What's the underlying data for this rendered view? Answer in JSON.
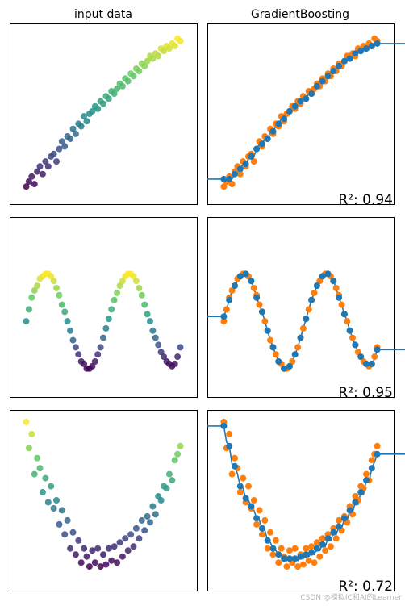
{
  "figure": {
    "col_titles": [
      "input data",
      "GradientBoosting"
    ],
    "watermark": "CSDN @模拟IC和AI的Learner"
  },
  "colors": {
    "data_points": "#1f77b4",
    "prediction": "#ff7f0e",
    "line": "#1f77b4",
    "frame": "#000000",
    "viridis": [
      "#440154",
      "#3b528b",
      "#21918c",
      "#5ec962",
      "#fde725"
    ]
  },
  "chart_data": [
    {
      "type": "scatter",
      "title": "",
      "xlabel": "",
      "ylabel": "",
      "xlim": [
        -3.4,
        3.4
      ],
      "ylim": [
        -3.6,
        3.6
      ],
      "grid": false,
      "shape": "linear",
      "score_label": "R²: 0.94",
      "x": [
        -2.8,
        -2.7,
        -2.6,
        -2.5,
        -2.4,
        -2.3,
        -2.2,
        -2.1,
        -2.0,
        -1.9,
        -1.8,
        -1.7,
        -1.6,
        -1.5,
        -1.4,
        -1.3,
        -1.2,
        -1.1,
        -1.0,
        -0.9,
        -0.8,
        -0.7,
        -0.6,
        -0.5,
        -0.4,
        -0.3,
        -0.2,
        -0.1,
        0.0,
        0.1,
        0.2,
        0.3,
        0.4,
        0.5,
        0.6,
        0.7,
        0.8,
        0.9,
        1.0,
        1.1,
        1.2,
        1.3,
        1.4,
        1.5,
        1.6,
        1.7,
        1.8,
        1.9,
        2.0,
        2.1,
        2.2,
        2.3,
        2.4,
        2.5,
        2.6,
        2.7,
        2.8
      ],
      "y": [
        -2.9,
        -2.7,
        -2.5,
        -2.8,
        -2.3,
        -2.1,
        -2.4,
        -1.9,
        -2.1,
        -1.7,
        -1.6,
        -1.9,
        -1.4,
        -1.1,
        -1.3,
        -0.9,
        -1.0,
        -0.6,
        -0.8,
        -0.4,
        -0.5,
        -0.1,
        -0.3,
        0.0,
        0.1,
        0.3,
        0.2,
        0.5,
        0.4,
        0.7,
        0.6,
        0.9,
        0.8,
        1.0,
        1.2,
        1.1,
        1.4,
        1.3,
        1.6,
        1.5,
        1.8,
        1.7,
        2.0,
        1.9,
        2.1,
        2.3,
        2.2,
        2.4,
        2.3,
        2.6,
        2.5,
        2.7,
        2.6,
        2.8,
        2.7,
        3.0,
        2.9
      ],
      "pred": [
        -2.6,
        -2.6,
        -2.6,
        -2.6,
        -2.4,
        -2.2,
        -2.2,
        -2.0,
        -2.0,
        -1.8,
        -1.7,
        -1.7,
        -1.4,
        -1.2,
        -1.2,
        -1.0,
        -1.0,
        -0.7,
        -0.7,
        -0.5,
        -0.4,
        -0.2,
        -0.2,
        0.0,
        0.1,
        0.3,
        0.3,
        0.4,
        0.5,
        0.6,
        0.6,
        0.8,
        0.8,
        1.0,
        1.1,
        1.2,
        1.3,
        1.3,
        1.5,
        1.5,
        1.7,
        1.7,
        1.9,
        1.9,
        2.1,
        2.2,
        2.2,
        2.3,
        2.4,
        2.5,
        2.5,
        2.6,
        2.6,
        2.7,
        2.7,
        2.8,
        2.8
      ]
    },
    {
      "type": "scatter",
      "title": "",
      "xlabel": "",
      "ylabel": "",
      "xlim": [
        -3.4,
        3.4
      ],
      "ylim": [
        -1.6,
        2.2
      ],
      "grid": false,
      "shape": "sine",
      "score_label": "R²: 0.95",
      "x": [
        -2.8,
        -2.7,
        -2.6,
        -2.5,
        -2.4,
        -2.3,
        -2.2,
        -2.1,
        -2.0,
        -1.9,
        -1.8,
        -1.7,
        -1.6,
        -1.5,
        -1.4,
        -1.3,
        -1.2,
        -1.1,
        -1.0,
        -0.9,
        -0.8,
        -0.7,
        -0.6,
        -0.5,
        -0.4,
        -0.3,
        -0.2,
        -0.1,
        0.0,
        0.1,
        0.2,
        0.3,
        0.4,
        0.5,
        0.6,
        0.7,
        0.8,
        0.9,
        1.0,
        1.1,
        1.2,
        1.3,
        1.4,
        1.5,
        1.6,
        1.7,
        1.8,
        1.9,
        2.0,
        2.1,
        2.2,
        2.3,
        2.4,
        2.5,
        2.6,
        2.7,
        2.8
      ],
      "y": [
        0.0,
        0.25,
        0.5,
        0.65,
        0.75,
        0.9,
        0.95,
        1.0,
        1.0,
        0.95,
        0.85,
        0.7,
        0.55,
        0.35,
        0.2,
        0.0,
        -0.2,
        -0.4,
        -0.55,
        -0.7,
        -0.85,
        -0.9,
        -1.0,
        -1.0,
        -0.95,
        -0.85,
        -0.7,
        -0.55,
        -0.35,
        -0.15,
        0.05,
        0.25,
        0.45,
        0.6,
        0.75,
        0.85,
        0.95,
        1.0,
        1.0,
        0.95,
        0.85,
        0.7,
        0.55,
        0.35,
        0.15,
        0.0,
        -0.2,
        -0.35,
        -0.5,
        -0.65,
        -0.75,
        -0.85,
        -0.9,
        -0.95,
        -0.9,
        -0.75,
        -0.55
      ],
      "pred": [
        0.1,
        0.25,
        0.45,
        0.65,
        0.75,
        0.85,
        0.95,
        1.0,
        1.0,
        0.9,
        0.85,
        0.7,
        0.5,
        0.35,
        0.2,
        0.0,
        -0.2,
        -0.4,
        -0.55,
        -0.7,
        -0.85,
        -0.9,
        -1.0,
        -1.0,
        -0.95,
        -0.85,
        -0.7,
        -0.55,
        -0.35,
        -0.15,
        0.05,
        0.25,
        0.45,
        0.6,
        0.75,
        0.85,
        0.95,
        1.0,
        1.0,
        0.95,
        0.85,
        0.7,
        0.5,
        0.35,
        0.15,
        0.0,
        -0.2,
        -0.35,
        -0.5,
        -0.65,
        -0.75,
        -0.85,
        -0.9,
        -0.95,
        -0.9,
        -0.8,
        -0.6
      ]
    },
    {
      "type": "scatter",
      "title": "",
      "xlabel": "",
      "ylabel": "",
      "xlim": [
        -3.4,
        3.4
      ],
      "ylim": [
        -1.2,
        7.8
      ],
      "grid": false,
      "shape": "quadratic",
      "score_label": "R²: 0.72",
      "x": [
        -2.8,
        -2.7,
        -2.6,
        -2.5,
        -2.4,
        -2.3,
        -2.2,
        -2.1,
        -2.0,
        -1.9,
        -1.8,
        -1.7,
        -1.6,
        -1.5,
        -1.4,
        -1.3,
        -1.2,
        -1.1,
        -1.0,
        -0.9,
        -0.8,
        -0.7,
        -0.6,
        -0.5,
        -0.4,
        -0.3,
        -0.2,
        -0.1,
        0.0,
        0.1,
        0.2,
        0.3,
        0.4,
        0.5,
        0.6,
        0.7,
        0.8,
        0.9,
        1.0,
        1.1,
        1.2,
        1.3,
        1.4,
        1.5,
        1.6,
        1.7,
        1.8,
        1.9,
        2.0,
        2.1,
        2.2,
        2.3,
        2.4,
        2.5,
        2.6,
        2.7,
        2.8
      ],
      "y": [
        7.2,
        5.9,
        6.6,
        4.6,
        5.4,
        4.9,
        3.7,
        4.4,
        3.2,
        4.0,
        2.9,
        3.3,
        2.1,
        2.8,
        1.6,
        2.3,
        0.9,
        1.7,
        0.6,
        1.3,
        0.2,
        0.9,
        0.5,
        0.0,
        0.8,
        0.2,
        0.9,
        0.0,
        0.6,
        0.1,
        0.9,
        0.3,
        1.0,
        0.2,
        1.2,
        0.5,
        1.4,
        0.8,
        1.6,
        1.0,
        1.9,
        1.4,
        2.3,
        1.8,
        2.5,
        2.2,
        3.0,
        2.6,
        3.5,
        3.3,
        4.0,
        3.9,
        4.6,
        4.3,
        5.3,
        5.6,
        6.0
      ],
      "pred": [
        7.0,
        6.2,
        6.0,
        5.1,
        5.0,
        4.6,
        4.0,
        3.9,
        3.4,
        3.3,
        3.0,
        2.8,
        2.4,
        2.3,
        1.9,
        1.8,
        1.3,
        1.2,
        0.9,
        0.8,
        0.6,
        0.5,
        0.4,
        0.3,
        0.4,
        0.3,
        0.4,
        0.3,
        0.5,
        0.4,
        0.6,
        0.5,
        0.7,
        0.6,
        0.9,
        0.8,
        1.1,
        1.0,
        1.4,
        1.3,
        1.7,
        1.6,
        2.0,
        1.9,
        2.4,
        2.3,
        2.8,
        2.7,
        3.2,
        3.1,
        3.7,
        3.6,
        4.3,
        4.2,
        4.9,
        5.2,
        5.6
      ]
    }
  ]
}
